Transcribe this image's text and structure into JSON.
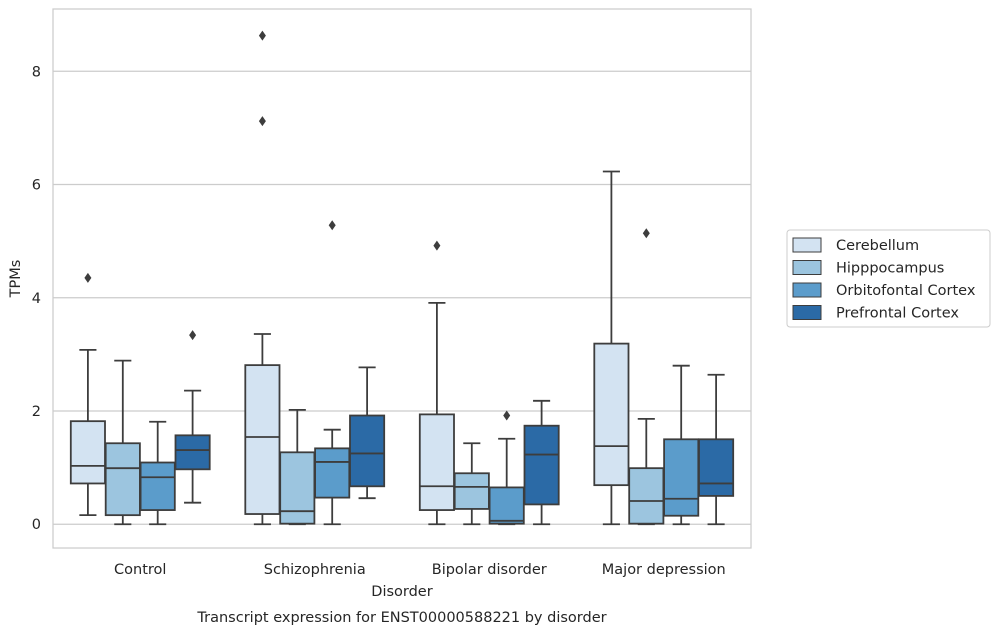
{
  "chart_data": {
    "type": "box",
    "title": "Transcript expression for ENST00000588221 by disorder",
    "xlabel": "Disorder",
    "ylabel": "TPMs",
    "categories": [
      "Control",
      "Schizophrenia",
      "Bipolar disorder",
      "Major depression"
    ],
    "ylim": [
      -0.42,
      9.1
    ],
    "yticks": [
      0,
      2,
      4,
      6,
      8
    ],
    "grid": "horizontal",
    "legend_position": "right",
    "series": [
      {
        "name": "Cerebellum",
        "color": "#d3e3f2",
        "boxes": [
          {
            "whisker_low": 0.16,
            "q1": 0.72,
            "median": 1.03,
            "q3": 1.82,
            "whisker_high": 3.08,
            "outliers": [
              4.35
            ]
          },
          {
            "whisker_low": 0.0,
            "q1": 0.18,
            "median": 1.54,
            "q3": 2.81,
            "whisker_high": 3.36,
            "outliers": [
              7.12,
              8.63
            ]
          },
          {
            "whisker_low": 0.0,
            "q1": 0.25,
            "median": 0.67,
            "q3": 1.94,
            "whisker_high": 3.91,
            "outliers": [
              4.92
            ]
          },
          {
            "whisker_low": 0.0,
            "q1": 0.69,
            "median": 1.38,
            "q3": 3.19,
            "whisker_high": 6.23,
            "outliers": []
          }
        ]
      },
      {
        "name": "Hipppocampus",
        "color": "#9cc5df",
        "boxes": [
          {
            "whisker_low": 0.0,
            "q1": 0.16,
            "median": 0.99,
            "q3": 1.43,
            "whisker_high": 2.89,
            "outliers": []
          },
          {
            "whisker_low": 0.0,
            "q1": 0.01,
            "median": 0.23,
            "q3": 1.27,
            "whisker_high": 2.02,
            "outliers": []
          },
          {
            "whisker_low": 0.0,
            "q1": 0.27,
            "median": 0.66,
            "q3": 0.9,
            "whisker_high": 1.43,
            "outliers": []
          },
          {
            "whisker_low": 0.0,
            "q1": 0.01,
            "median": 0.41,
            "q3": 0.99,
            "whisker_high": 1.86,
            "outliers": [
              5.14
            ]
          }
        ]
      },
      {
        "name": "Orbitofontal Cortex",
        "color": "#5b9ccb",
        "boxes": [
          {
            "whisker_low": 0.0,
            "q1": 0.25,
            "median": 0.83,
            "q3": 1.09,
            "whisker_high": 1.81,
            "outliers": []
          },
          {
            "whisker_low": 0.0,
            "q1": 0.47,
            "median": 1.1,
            "q3": 1.34,
            "whisker_high": 1.67,
            "outliers": [
              5.28
            ]
          },
          {
            "whisker_low": 0.0,
            "q1": 0.01,
            "median": 0.06,
            "q3": 0.65,
            "whisker_high": 1.51,
            "outliers": [
              1.92
            ]
          },
          {
            "whisker_low": 0.0,
            "q1": 0.15,
            "median": 0.45,
            "q3": 1.5,
            "whisker_high": 2.8,
            "outliers": []
          }
        ]
      },
      {
        "name": "Prefrontal Cortex",
        "color": "#2b6aa6",
        "boxes": [
          {
            "whisker_low": 0.38,
            "q1": 0.97,
            "median": 1.31,
            "q3": 1.57,
            "whisker_high": 2.36,
            "outliers": [
              3.34
            ]
          },
          {
            "whisker_low": 0.46,
            "q1": 0.67,
            "median": 1.25,
            "q3": 1.92,
            "whisker_high": 2.77,
            "outliers": []
          },
          {
            "whisker_low": 0.0,
            "q1": 0.35,
            "median": 1.23,
            "q3": 1.74,
            "whisker_high": 2.18,
            "outliers": []
          },
          {
            "whisker_low": 0.0,
            "q1": 0.5,
            "median": 0.72,
            "q3": 1.5,
            "whisker_high": 2.64,
            "outliers": []
          }
        ]
      }
    ]
  }
}
